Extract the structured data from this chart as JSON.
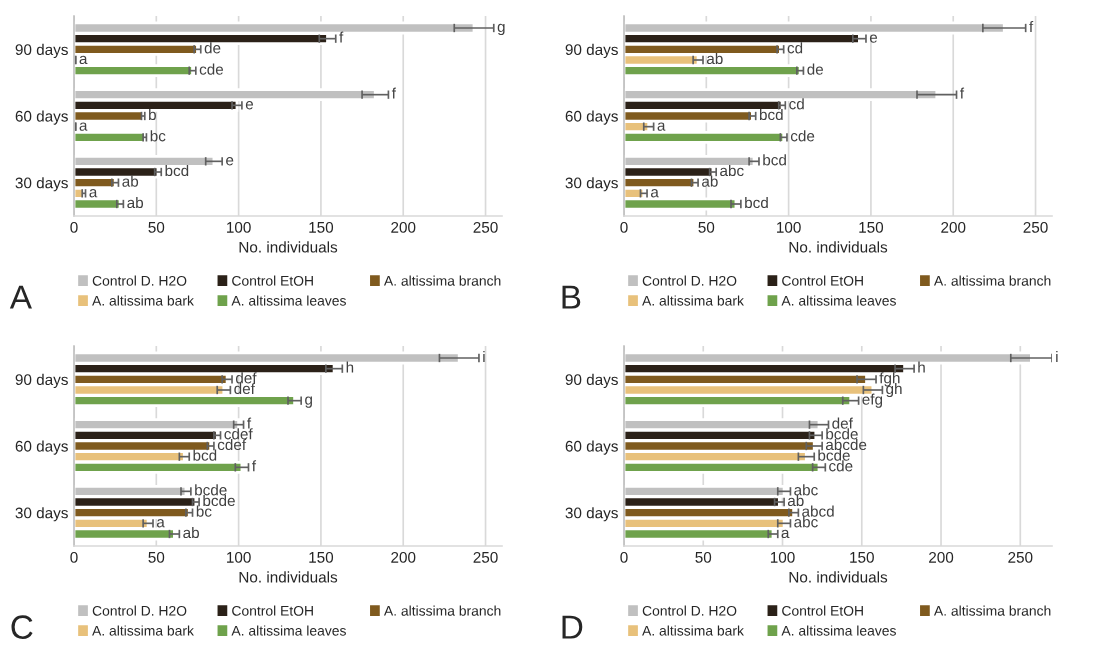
{
  "chart_data": [
    {
      "type": "bar",
      "title": "A",
      "orientation": "horizontal",
      "categories": [
        "90 days",
        "60 days",
        "30 days"
      ],
      "xlabel": "No. individuals",
      "xlim": [
        0,
        260
      ],
      "xticks": [
        0,
        50,
        100,
        150,
        200,
        250
      ],
      "grid": "x",
      "legend": "bottom",
      "series": [
        {
          "name": "Control D. H2O",
          "color": "#c0c0c0",
          "values": [
            243,
            183,
            85
          ],
          "errors": [
            12,
            8,
            5
          ],
          "value_labels": [
            "g",
            "f",
            "e"
          ]
        },
        {
          "name": "Control EtOH",
          "color": "#2b2118",
          "values": [
            154,
            99,
            51
          ],
          "errors": [
            5,
            3,
            2
          ],
          "value_labels": [
            "f",
            "e",
            "bcd"
          ]
        },
        {
          "name": "A. altissima branch",
          "color": "#7f5a1e",
          "values": [
            75,
            42,
            25
          ],
          "errors": [
            2,
            1,
            2
          ],
          "value_labels": [
            "de",
            "b",
            "ab"
          ]
        },
        {
          "name": "A. altissima bark",
          "color": "#e8c17b",
          "values": [
            1,
            1,
            6
          ],
          "errors": [
            0,
            0,
            1
          ],
          "value_labels": [
            "a",
            "a",
            "a"
          ]
        },
        {
          "name": "A. altissima leaves",
          "color": "#6fa24c",
          "values": [
            72,
            43,
            28
          ],
          "errors": [
            2,
            1,
            2
          ],
          "value_labels": [
            "cde",
            "bc",
            "ab"
          ]
        }
      ]
    },
    {
      "type": "bar",
      "title": "B",
      "orientation": "horizontal",
      "categories": [
        "90 days",
        "60 days",
        "30 days"
      ],
      "xlabel": "No. individuals",
      "xlim": [
        0,
        260
      ],
      "xticks": [
        0,
        50,
        100,
        150,
        200,
        250
      ],
      "grid": "x",
      "legend": "bottom",
      "series": [
        {
          "name": "Control D. H2O",
          "color": "#c0c0c0",
          "values": [
            231,
            190,
            79
          ],
          "errors": [
            13,
            12,
            3
          ],
          "value_labels": [
            "f",
            "f",
            "bcd"
          ]
        },
        {
          "name": "Control EtOH",
          "color": "#2b2118",
          "values": [
            143,
            96,
            54
          ],
          "errors": [
            4,
            2,
            2
          ],
          "value_labels": [
            "e",
            "cd",
            "abc"
          ]
        },
        {
          "name": "A. altissima branch",
          "color": "#7f5a1e",
          "values": [
            95,
            78,
            43
          ],
          "errors": [
            2,
            2,
            2
          ],
          "value_labels": [
            "cd",
            "bcd",
            "ab"
          ]
        },
        {
          "name": "A. altissima bark",
          "color": "#e8c17b",
          "values": [
            45,
            15,
            12
          ],
          "errors": [
            3,
            3,
            2
          ],
          "value_labels": [
            "ab",
            "a",
            "a"
          ]
        },
        {
          "name": "A. altissima leaves",
          "color": "#6fa24c",
          "values": [
            107,
            97,
            68
          ],
          "errors": [
            2,
            2,
            3
          ],
          "value_labels": [
            "de",
            "cde",
            "bcd"
          ]
        }
      ]
    },
    {
      "type": "bar",
      "title": "C",
      "orientation": "horizontal",
      "categories": [
        "90 days",
        "60 days",
        "30 days"
      ],
      "xlabel": "No. individuals",
      "xlim": [
        0,
        260
      ],
      "xticks": [
        0,
        50,
        100,
        150,
        200,
        250
      ],
      "grid": "x",
      "legend": "bottom",
      "series": [
        {
          "name": "Control D. H2O",
          "color": "#c0c0c0",
          "values": [
            234,
            100,
            68
          ],
          "errors": [
            12,
            3,
            3
          ],
          "value_labels": [
            "i",
            "f",
            "bcde"
          ]
        },
        {
          "name": "Control EtOH",
          "color": "#2b2118",
          "values": [
            158,
            87,
            74
          ],
          "errors": [
            5,
            2,
            2
          ],
          "value_labels": [
            "h",
            "cdef",
            "bcde"
          ]
        },
        {
          "name": "A. altissima branch",
          "color": "#7f5a1e",
          "values": [
            93,
            83,
            70
          ],
          "errors": [
            3,
            2,
            2
          ],
          "value_labels": [
            "def",
            "cdef",
            "bc"
          ]
        },
        {
          "name": "A. altissima bark",
          "color": "#e8c17b",
          "values": [
            91,
            67,
            45
          ],
          "errors": [
            4,
            3,
            3
          ],
          "value_labels": [
            "def",
            "bcd",
            "a"
          ]
        },
        {
          "name": "A. altissima leaves",
          "color": "#6fa24c",
          "values": [
            134,
            102,
            61
          ],
          "errors": [
            4,
            4,
            3
          ],
          "value_labels": [
            "g",
            "f",
            "ab"
          ]
        }
      ]
    },
    {
      "type": "bar",
      "title": "D",
      "orientation": "horizontal",
      "categories": [
        "90 days",
        "60 days",
        "30 days"
      ],
      "xlabel": "No. individuals",
      "xlim": [
        0,
        270
      ],
      "xticks": [
        0,
        50,
        100,
        150,
        200,
        250
      ],
      "grid": "x",
      "legend": "bottom",
      "series": [
        {
          "name": "Control D. H2O",
          "color": "#c0c0c0",
          "values": [
            257,
            123,
            101
          ],
          "errors": [
            13,
            6,
            4
          ],
          "value_labels": [
            "i",
            "def",
            "abc"
          ]
        },
        {
          "name": "Control EtOH",
          "color": "#2b2118",
          "values": [
            177,
            121,
            98
          ],
          "errors": [
            6,
            4,
            3
          ],
          "value_labels": [
            "h",
            "bcde",
            "ab"
          ]
        },
        {
          "name": "A. altissima branch",
          "color": "#7f5a1e",
          "values": [
            153,
            120,
            107
          ],
          "errors": [
            6,
            5,
            3
          ],
          "value_labels": [
            "fgh",
            "abcde",
            "abcd"
          ]
        },
        {
          "name": "A. altissima bark",
          "color": "#e8c17b",
          "values": [
            157,
            115,
            101
          ],
          "errors": [
            6,
            5,
            4
          ],
          "value_labels": [
            "gh",
            "bcde",
            "abc"
          ]
        },
        {
          "name": "A. altissima leaves",
          "color": "#6fa24c",
          "values": [
            143,
            123,
            94
          ],
          "errors": [
            5,
            4,
            3
          ],
          "value_labels": [
            "efg",
            "cde",
            "a"
          ]
        }
      ]
    }
  ]
}
